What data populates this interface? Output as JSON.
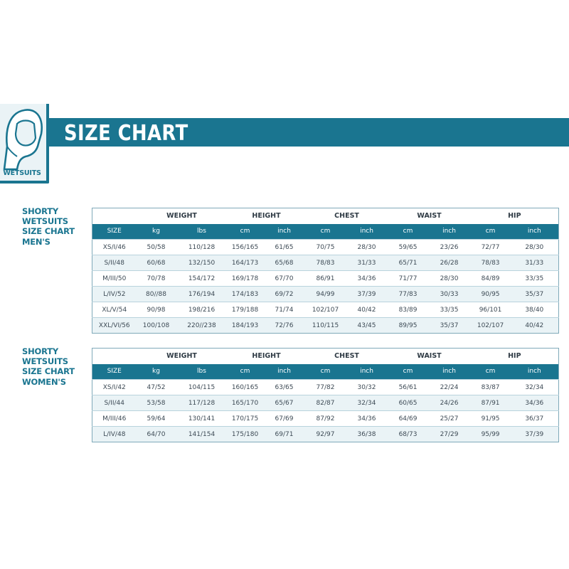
{
  "header": {
    "title": "SIZE CHART",
    "badge_label": "WETSUITS"
  },
  "men": {
    "label": [
      "SHORTY",
      "WETSUITS",
      "SIZE CHART",
      "MEN'S"
    ],
    "groups": [
      "WEIGHT",
      "HEIGHT",
      "CHEST",
      "WAIST",
      "HIP"
    ],
    "units": [
      "SIZE",
      "kg",
      "lbs",
      "cm",
      "inch",
      "cm",
      "inch",
      "cm",
      "inch",
      "cm",
      "inch"
    ],
    "rows": [
      [
        "XS/I/46",
        "50/58",
        "110/128",
        "156/165",
        "61/65",
        "70/75",
        "28/30",
        "59/65",
        "23/26",
        "72/77",
        "28/30"
      ],
      [
        "S/II/48",
        "60/68",
        "132/150",
        "164/173",
        "65/68",
        "78/83",
        "31/33",
        "65/71",
        "26/28",
        "78/83",
        "31/33"
      ],
      [
        "M/III/50",
        "70/78",
        "154/172",
        "169/178",
        "67/70",
        "86/91",
        "34/36",
        "71/77",
        "28/30",
        "84/89",
        "33/35"
      ],
      [
        "L/IV/52",
        "80//88",
        "176/194",
        "174/183",
        "69/72",
        "94/99",
        "37/39",
        "77/83",
        "30/33",
        "90/95",
        "35/37"
      ],
      [
        "XL/V/54",
        "90/98",
        "198/216",
        "179/188",
        "71/74",
        "102/107",
        "40/42",
        "83/89",
        "33/35",
        "96/101",
        "38/40"
      ],
      [
        "XXL/VI/56",
        "100/108",
        "220//238",
        "184/193",
        "72/76",
        "110/115",
        "43/45",
        "89/95",
        "35/37",
        "102/107",
        "40/42"
      ]
    ]
  },
  "women": {
    "label": [
      "SHORTY",
      "WETSUITS",
      "SIZE CHART",
      "WOMEN'S"
    ],
    "groups": [
      "WEIGHT",
      "HEIGHT",
      "CHEST",
      "WAIST",
      "HIP"
    ],
    "units": [
      "SIZE",
      "kg",
      "lbs",
      "cm",
      "inch",
      "cm",
      "inch",
      "cm",
      "inch",
      "cm",
      "inch"
    ],
    "rows": [
      [
        "XS/I/42",
        "47/52",
        "104/115",
        "160/165",
        "63/65",
        "77/82",
        "30/32",
        "56/61",
        "22/24",
        "83/87",
        "32/34"
      ],
      [
        "S/II/44",
        "53/58",
        "117/128",
        "165/170",
        "65/67",
        "82/87",
        "32/34",
        "60/65",
        "24/26",
        "87/91",
        "34/36"
      ],
      [
        "M/III/46",
        "59/64",
        "130/141",
        "170/175",
        "67/69",
        "87/92",
        "34/36",
        "64/69",
        "25/27",
        "91/95",
        "36/37"
      ],
      [
        "L/IV/48",
        "64/70",
        "141/154",
        "175/180",
        "69/71",
        "92/97",
        "36/38",
        "68/73",
        "27/29",
        "95/99",
        "37/39"
      ]
    ]
  },
  "colors": {
    "accent": "#1a7590",
    "row_alt": "#eaf3f6"
  }
}
